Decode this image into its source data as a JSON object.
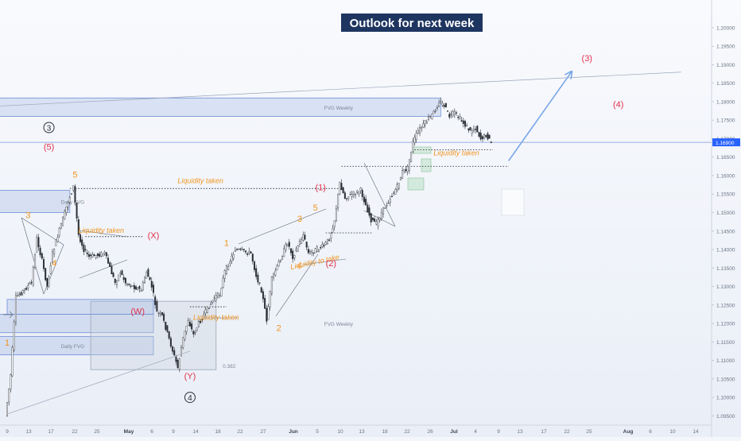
{
  "chart_data": {
    "type": "candlestick",
    "title": "Outlook for next week",
    "title_bg": "#1e3560",
    "colors": {
      "orange": "#f0941f",
      "red": "#e2304a",
      "blue_zone": "#8fa9df",
      "blue_arrow": "#7aa7e8",
      "price_line": "#7b96e0",
      "price_label_bg": "#2962ff"
    },
    "ylim": [
      1.0925,
      1.2075
    ],
    "y_ticks": [
      "1.20000",
      "1.19500",
      "1.19000",
      "1.18500",
      "1.18000",
      "1.17500",
      "1.17000",
      "1.16500",
      "1.16000",
      "1.15500",
      "1.15000",
      "1.14500",
      "1.14000",
      "1.13500",
      "1.13000",
      "1.12500",
      "1.12000",
      "1.11500",
      "1.11000",
      "1.10500",
      "1.10000",
      "1.09500"
    ],
    "current_price": "1.16900",
    "x_ticks": [
      "9",
      "13",
      "17",
      "22",
      "25",
      "May",
      "6",
      "9",
      "14",
      "18",
      "22",
      "27",
      "Jun",
      "5",
      "10",
      "13",
      "18",
      "22",
      "26",
      "Jul",
      "4",
      "9",
      "13",
      "17",
      "22",
      "25",
      "Aug",
      "6",
      "10",
      "14"
    ],
    "price_path": [
      [
        "2025-04-09",
        1.095
      ],
      [
        "2025-04-10",
        1.106
      ],
      [
        "2025-04-11",
        1.127
      ],
      [
        "2025-04-14",
        1.131
      ],
      [
        "2025-04-15",
        1.143
      ],
      [
        "2025-04-16",
        1.137
      ],
      [
        "2025-04-17",
        1.13
      ],
      [
        "2025-04-18",
        1.139
      ],
      [
        "2025-04-21",
        1.153
      ],
      [
        "2025-04-22",
        1.157
      ],
      [
        "2025-04-23",
        1.144
      ],
      [
        "2025-04-24",
        1.14
      ],
      [
        "2025-04-25",
        1.138
      ],
      [
        "2025-04-28",
        1.139
      ],
      [
        "2025-04-29",
        1.135
      ],
      [
        "2025-04-30",
        1.131
      ],
      [
        "2025-05-01",
        1.134
      ],
      [
        "2025-05-02",
        1.131
      ],
      [
        "2025-05-05",
        1.129
      ],
      [
        "2025-05-06",
        1.134
      ],
      [
        "2025-05-07",
        1.13
      ],
      [
        "2025-05-08",
        1.123
      ],
      [
        "2025-05-09",
        1.122
      ],
      [
        "2025-05-12",
        1.108
      ],
      [
        "2025-05-13",
        1.116
      ],
      [
        "2025-05-14",
        1.121
      ],
      [
        "2025-05-15",
        1.117
      ],
      [
        "2025-05-16",
        1.12
      ],
      [
        "2025-05-19",
        1.127
      ],
      [
        "2025-05-20",
        1.128
      ],
      [
        "2025-05-21",
        1.134
      ],
      [
        "2025-05-22",
        1.137
      ],
      [
        "2025-05-23",
        1.14
      ],
      [
        "2025-05-26",
        1.139
      ],
      [
        "2025-05-27",
        1.133
      ],
      [
        "2025-05-28",
        1.129
      ],
      [
        "2025-05-29",
        1.121
      ],
      [
        "2025-05-30",
        1.132
      ],
      [
        "2025-06-02",
        1.142
      ],
      [
        "2025-06-03",
        1.138
      ],
      [
        "2025-06-04",
        1.141
      ],
      [
        "2025-06-05",
        1.144
      ],
      [
        "2025-06-06",
        1.139
      ],
      [
        "2025-06-09",
        1.141
      ],
      [
        "2025-06-10",
        1.143
      ],
      [
        "2025-06-11",
        1.148
      ],
      [
        "2025-06-12",
        1.158
      ],
      [
        "2025-06-13",
        1.154
      ],
      [
        "2025-06-16",
        1.156
      ],
      [
        "2025-06-17",
        1.152
      ],
      [
        "2025-06-18",
        1.148
      ],
      [
        "2025-06-19",
        1.147
      ],
      [
        "2025-06-20",
        1.15
      ],
      [
        "2025-06-23",
        1.157
      ],
      [
        "2025-06-24",
        1.161
      ],
      [
        "2025-06-25",
        1.162
      ],
      [
        "2025-06-26",
        1.169
      ],
      [
        "2025-06-27",
        1.172
      ],
      [
        "2025-06-30",
        1.177
      ],
      [
        "2025-07-01",
        1.18
      ],
      [
        "2025-07-02",
        1.179
      ],
      [
        "2025-07-03",
        1.176
      ],
      [
        "2025-07-04",
        1.177
      ],
      [
        "2025-07-07",
        1.172
      ],
      [
        "2025-07-08",
        1.173
      ],
      [
        "2025-07-09",
        1.17
      ],
      [
        "2025-07-10",
        1.171
      ],
      [
        "2025-07-11",
        1.169
      ]
    ],
    "zones": [
      {
        "label": "FVG Weekly",
        "x": [
          "2025-03-20",
          "2025-07-01"
        ],
        "y": [
          1.181,
          1.176
        ]
      },
      {
        "label": "Daily FVG",
        "x": [
          "2025-03-20",
          "2025-04-21"
        ],
        "y": [
          1.156,
          1.15
        ]
      },
      {
        "label": "FVG Weekly",
        "x": [
          "2025-03-20",
          "2025-05-07"
        ],
        "y": [
          1.1225,
          1.1175
        ]
      },
      {
        "label": "Daily FVG",
        "x": [
          "2025-03-20",
          "2025-05-07"
        ],
        "y": [
          1.1165,
          1.1115
        ]
      },
      {
        "label": "0.382",
        "x": [
          "2025-04-25",
          "2025-05-19"
        ],
        "y": [
          1.126,
          1.1075
        ]
      },
      {
        "label": "",
        "x": [
          "2025-04-09",
          "2025-05-07"
        ],
        "y": [
          1.1265,
          1.1225
        ]
      }
    ],
    "dotted_lines": [
      {
        "x": [
          "2025-04-21",
          "2025-06-12"
        ],
        "y": 1.1565
      },
      {
        "x": [
          "2025-06-12",
          "2025-07-14"
        ],
        "y": 1.1625
      },
      {
        "x": [
          "2025-06-26",
          "2025-07-11"
        ],
        "y": 1.167
      },
      {
        "x": [
          "2025-04-24",
          "2025-05-05"
        ],
        "y": 1.1435
      },
      {
        "x": [
          "2025-05-14",
          "2025-05-21"
        ],
        "y": 1.1245
      },
      {
        "x": [
          "2025-05-17",
          "2025-05-23"
        ],
        "y": 1.1215
      },
      {
        "x": [
          "2025-06-09",
          "2025-06-18"
        ],
        "y": 1.1445
      }
    ],
    "annotations": [
      {
        "text": "Liquidity taken",
        "x": "2025-05-16",
        "y": 1.158,
        "color": "orange",
        "italic": true
      },
      {
        "text": "Liquidity taken",
        "x": "2025-04-27",
        "y": 1.1445,
        "color": "orange",
        "italic": true
      },
      {
        "text": "Liquidity taken",
        "x": "2025-05-19",
        "y": 1.121,
        "color": "orange",
        "italic": true
      },
      {
        "text": "Liquidity taken",
        "x": "2025-07-04",
        "y": 1.1655,
        "color": "orange",
        "italic": true
      },
      {
        "text": "Liquidity to take",
        "x": "2025-06-07",
        "y": 1.136,
        "color": "orange",
        "italic": true,
        "rotate": -12
      },
      {
        "text": "5",
        "x": "2025-04-22",
        "y": 1.1595,
        "color": "orange"
      },
      {
        "text": "3",
        "x": "2025-04-13",
        "y": 1.1485,
        "color": "orange"
      },
      {
        "text": "4",
        "x": "2025-04-18",
        "y": 1.1355,
        "color": "orange"
      },
      {
        "text": "1",
        "x": "2025-04-09",
        "y": 1.114,
        "color": "orange"
      },
      {
        "text": "1",
        "x": "2025-05-21",
        "y": 1.141,
        "color": "orange"
      },
      {
        "text": "2",
        "x": "2025-05-31",
        "y": 1.118,
        "color": "orange"
      },
      {
        "text": "3",
        "x": "2025-06-04",
        "y": 1.1475,
        "color": "orange"
      },
      {
        "text": "4",
        "x": "2025-06-04",
        "y": 1.135,
        "color": "orange"
      },
      {
        "text": "5",
        "x": "2025-06-07",
        "y": 1.1505,
        "color": "orange"
      },
      {
        "text": "(5)",
        "x": "2025-04-17",
        "y": 1.167,
        "color": "red"
      },
      {
        "text": "(X)",
        "x": "2025-05-07",
        "y": 1.143,
        "color": "red"
      },
      {
        "text": "(W)",
        "x": "2025-05-04",
        "y": 1.1225,
        "color": "red"
      },
      {
        "text": "(Y)",
        "x": "2025-05-14",
        "y": 1.105,
        "color": "red"
      },
      {
        "text": "(1)",
        "x": "2025-06-08",
        "y": 1.156,
        "color": "red"
      },
      {
        "text": "(2)",
        "x": "2025-06-10",
        "y": 1.1355,
        "color": "red"
      },
      {
        "text": "(3)",
        "x": "2025-07-29",
        "y": 1.191,
        "color": "red"
      },
      {
        "text": "(4)",
        "x": "2025-08-04",
        "y": 1.1785,
        "color": "red"
      }
    ],
    "circled_labels": [
      {
        "text": "3",
        "x": "2025-04-17",
        "y": 1.173
      },
      {
        "text": "4",
        "x": "2025-05-14",
        "y": 1.1
      }
    ],
    "trendlines": [
      {
        "x": [
          "2025-03-20",
          "2025-08-16"
        ],
        "y": [
          1.1775,
          1.188
        ]
      },
      {
        "x": [
          "2025-04-09",
          "2025-05-14"
        ],
        "y": [
          1.0955,
          1.1125
        ]
      }
    ],
    "projection_arrow": {
      "x": [
        "2025-07-14",
        "2025-07-26"
      ],
      "y": [
        1.164,
        1.188
      ]
    }
  }
}
